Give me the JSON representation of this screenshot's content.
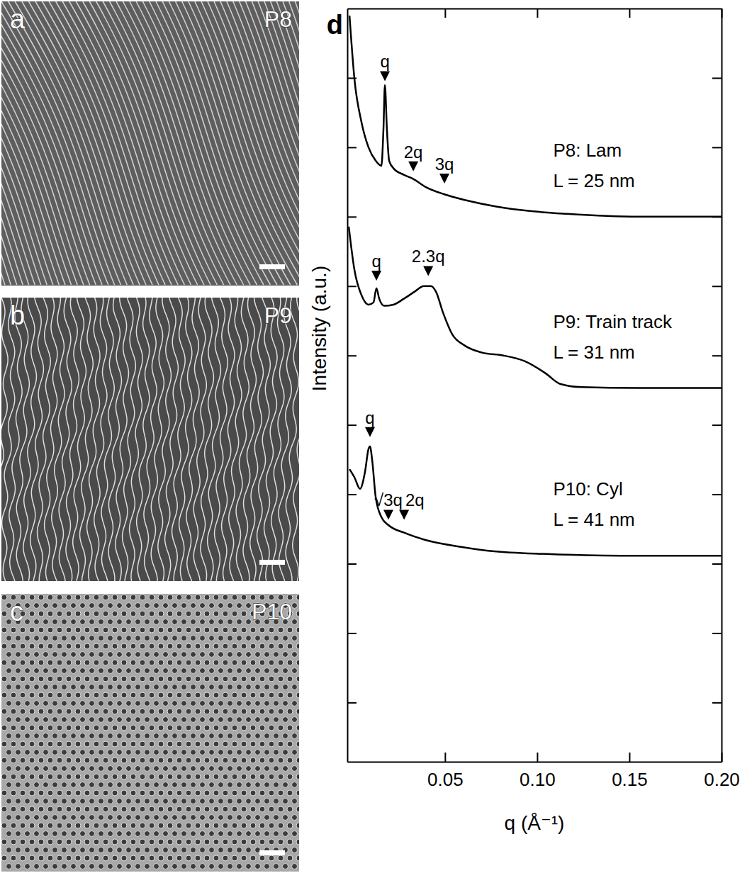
{
  "images": [
    {
      "letter": "a",
      "label": "P8"
    },
    {
      "letter": "b",
      "label": "P9"
    },
    {
      "letter": "c",
      "label": "P10"
    }
  ],
  "chart_data": {
    "type": "line",
    "label": "d",
    "xlabel": "q (Å⁻¹)",
    "ylabel": "Intensity (a.u.)",
    "log": "y",
    "tick_labels": "x",
    "xlim": [
      -0.003,
      0.2
    ],
    "ylim": [
      0.14,
      10000000000
    ],
    "xticks": [
      0.05,
      {
        "value": 0.1,
        "label": "0.10"
      },
      0.15,
      {
        "value": 0.2,
        "label": "0.20"
      }
    ],
    "yticks": [
      1,
      10,
      100,
      1000,
      10000,
      100000,
      1000000,
      10000000,
      100000000,
      1000000000
    ],
    "series": [
      {
        "name": "P8: Lam",
        "label": "L = 25 nm",
        "color": "#000000",
        "x": [
          -0.0018,
          0.0009,
          0.0047,
          0.0085,
          0.0124,
          0.0155,
          0.0166,
          0.0174,
          0.0185,
          0.0197,
          0.022,
          0.0278,
          0.0328,
          0.0393,
          0.0497,
          0.0624,
          0.0778,
          0.097,
          0.1162,
          0.1547,
          0.2
        ],
        "values": [
          7900000000,
          950000000,
          230000000,
          100000000,
          64000000,
          54000000,
          180000000,
          790000000,
          180000000,
          64000000,
          50000000,
          40000000,
          35000000,
          27000000,
          21000000,
          17000000,
          14000000,
          12000000,
          11000000,
          10000000,
          10000000
        ]
      },
      {
        "name": "P9: Train track",
        "label": "L = 31 nm",
        "color": "#000000",
        "x": [
          -0.0022,
          0.0009,
          0.0047,
          0.0085,
          0.0112,
          0.0128,
          0.0143,
          0.017,
          0.022,
          0.0278,
          0.0335,
          0.0385,
          0.0424,
          0.0451,
          0.049,
          0.054,
          0.0605,
          0.0701,
          0.0816,
          0.0932,
          0.1047,
          0.1124,
          0.1239,
          0.1547,
          0.2
        ],
        "values": [
          7200000,
          1700000,
          740000,
          540000,
          580000,
          930000,
          660000,
          520000,
          540000,
          660000,
          830000,
          1000000,
          1000000,
          830000,
          410000,
          200000,
          140000,
          110000,
          100000,
          83000,
          55000,
          39000,
          35000,
          34000,
          34000
        ]
      },
      {
        "name": "P10: Cyl",
        "label": "L = 41 nm",
        "color": "#000000",
        "x": [
          -0.0018,
          0.0009,
          0.0039,
          0.0066,
          0.0085,
          0.0093,
          0.0105,
          0.0124,
          0.0155,
          0.0193,
          0.0278,
          0.0393,
          0.0585,
          0.0778,
          0.1162,
          0.1547,
          0.2
        ],
        "values": [
          2300,
          1750,
          1200,
          2100,
          4500,
          4900,
          3100,
          910,
          470,
          360,
          280,
          220,
          175,
          150,
          135,
          130,
          130
        ]
      }
    ],
    "annotations": [
      {
        "text": "q",
        "x": 0.0174,
        "y": 900000000
      },
      {
        "text": "2q",
        "x": 0.0328,
        "y": 45000000
      },
      {
        "text": "3q",
        "x": 0.0497,
        "y": 30000000
      },
      {
        "text": "q",
        "x": 0.0128,
        "y": 1200000
      },
      {
        "text": "2.3q",
        "x": 0.0409,
        "y": 1400000
      },
      {
        "text": "q",
        "x": 0.0093,
        "y": 6700
      },
      {
        "text": "√3q",
        "x": 0.0193,
        "y": 430
      },
      {
        "text": "2q",
        "x": 0.0278,
        "y": 430
      }
    ]
  }
}
